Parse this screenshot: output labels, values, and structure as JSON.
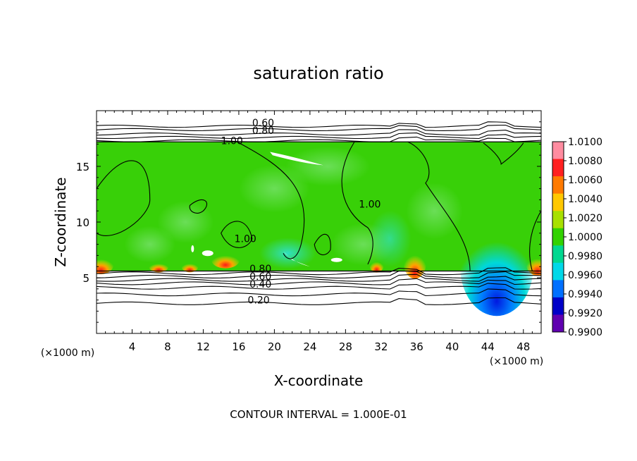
{
  "chart_data": {
    "type": "heatmap",
    "title": "saturation ratio",
    "xlabel": "X-coordinate",
    "ylabel": "Z-coordinate",
    "x_unit_label": "(×1000 m)",
    "xlim": [
      0,
      50
    ],
    "ylim": [
      0,
      20
    ],
    "x_ticks": [
      "4",
      "8",
      "12",
      "16",
      "20",
      "24",
      "28",
      "32",
      "36",
      "40",
      "44",
      "48"
    ],
    "y_ticks": [
      "5",
      "10",
      "15"
    ],
    "colorbar": {
      "levels": [
        "1.0100",
        "1.0080",
        "1.0060",
        "1.0040",
        "1.0020",
        "1.0000",
        "0.9980",
        "0.9960",
        "0.9940",
        "0.9920",
        "0.9900"
      ],
      "colors": [
        "#ff8ca0",
        "#ff2020",
        "#ff7a00",
        "#ffc800",
        "#a8e000",
        "#32d200",
        "#00d890",
        "#00d8e8",
        "#0070ff",
        "#0000c8",
        "#6000b0"
      ]
    },
    "contour_labels": [
      {
        "text": "0.60",
        "x": 17.5,
        "y": 18.6
      },
      {
        "text": "0.80",
        "x": 17.5,
        "y": 17.9
      },
      {
        "text": "1.00",
        "x": 14.0,
        "y": 17.0
      },
      {
        "text": "1.00",
        "x": 29.5,
        "y": 11.3
      },
      {
        "text": "1.00",
        "x": 15.5,
        "y": 8.2
      },
      {
        "text": "0.80",
        "x": 17.2,
        "y": 5.5
      },
      {
        "text": "0.60",
        "x": 17.2,
        "y": 4.8
      },
      {
        "text": "0.40",
        "x": 17.2,
        "y": 4.1
      },
      {
        "text": "0.20",
        "x": 17.0,
        "y": 2.7
      }
    ],
    "lower_contours_z": [
      2.7,
      3.5,
      4.1,
      4.5,
      4.8,
      5.1,
      5.4
    ],
    "upper_contours_z": [
      17.3,
      17.6,
      17.9,
      18.3,
      18.6
    ],
    "cloud_layer_z": [
      5.6,
      17.2
    ],
    "note": "CONTOUR INTERVAL = 1.000E-01"
  }
}
